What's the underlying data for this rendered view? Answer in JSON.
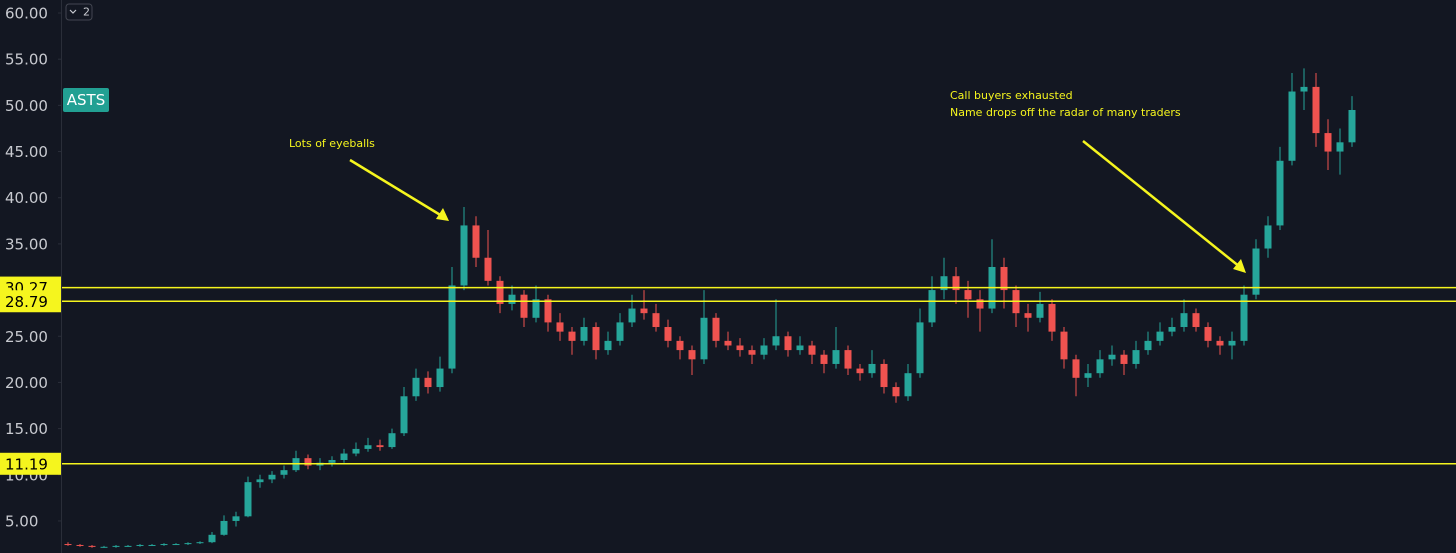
{
  "chart_data": {
    "type": "candlestick",
    "symbol": "ASTS",
    "badge": "2",
    "up_color": "#26a69a",
    "down_color": "#ef5350",
    "ylim": [
      1.53,
      61.41
    ],
    "yticks": [
      {
        "value": 5,
        "label": "5.00"
      },
      {
        "value": 10,
        "label": "10.00"
      },
      {
        "value": 15,
        "label": "15.00"
      },
      {
        "value": 20,
        "label": "20.00"
      },
      {
        "value": 25,
        "label": "25.00"
      },
      {
        "value": 30,
        "label": "30.00"
      },
      {
        "value": 35,
        "label": "35.00"
      },
      {
        "value": 40,
        "label": "40.00"
      },
      {
        "value": 45,
        "label": "45.00"
      },
      {
        "value": 50,
        "label": "50.00"
      },
      {
        "value": 55,
        "label": "55.00"
      },
      {
        "value": 60,
        "label": "60.00"
      }
    ],
    "hlines": [
      {
        "value": 30.27,
        "label": "30.27"
      },
      {
        "value": 28.79,
        "label": "28.79"
      },
      {
        "value": 11.19,
        "label": "11.19"
      }
    ],
    "hline_color": "#f5f51e",
    "annotations": [
      "Lots of eyeballs",
      "Call buyers exhausted",
      "Name drops off the radar of many traders"
    ],
    "open": [
      2.5,
      2.4,
      2.3,
      2.2,
      2.2,
      2.3,
      2.3,
      2.4,
      2.4,
      2.5,
      2.5,
      2.6,
      2.7,
      3.5,
      5.0,
      5.5,
      9.2,
      9.5,
      10.0,
      10.5,
      11.8,
      11.0,
      11.3,
      11.6,
      12.3,
      12.8,
      13.2,
      13.0,
      14.5,
      18.5,
      20.5,
      19.5,
      21.5,
      30.5,
      37.0,
      33.5,
      31.0,
      28.5,
      29.5,
      27.0,
      29.0,
      26.5,
      25.5,
      24.5,
      26.0,
      23.5,
      24.5,
      26.5,
      28.0,
      27.5,
      26.0,
      24.5,
      23.5,
      22.5,
      27.0,
      24.5,
      24.0,
      23.5,
      23.0,
      24.0,
      25.0,
      23.5,
      24.0,
      23.0,
      22.0,
      23.5,
      21.5,
      21.0,
      22.0,
      19.5,
      18.5,
      21.0,
      26.5,
      30.0,
      31.5,
      30.0,
      29.0,
      28.0,
      32.5,
      30.0,
      27.5,
      27.0,
      28.5,
      25.5,
      22.5,
      20.5,
      21.0,
      22.5,
      23.0,
      22.0,
      23.5,
      24.5,
      25.5,
      26.0,
      27.5,
      26.0,
      24.5,
      24.0,
      24.5,
      29.5,
      34.5,
      37.0,
      44.0,
      51.5,
      52.0,
      47.0,
      45.0,
      46.0
    ],
    "high": [
      2.7,
      2.5,
      2.4,
      2.3,
      2.4,
      2.4,
      2.5,
      2.5,
      2.6,
      2.6,
      2.7,
      2.8,
      3.8,
      5.6,
      6.0,
      9.8,
      10.0,
      10.4,
      11.0,
      12.6,
      12.2,
      11.8,
      12.0,
      12.8,
      13.5,
      14.0,
      13.8,
      15.0,
      19.5,
      21.5,
      21.2,
      22.8,
      32.5,
      39.0,
      38.0,
      36.5,
      31.5,
      30.5,
      30.0,
      30.5,
      29.5,
      27.5,
      26.0,
      27.0,
      26.5,
      25.5,
      27.5,
      29.5,
      30.0,
      28.5,
      26.8,
      25.0,
      24.0,
      30.0,
      27.5,
      25.5,
      24.8,
      24.0,
      24.8,
      29.0,
      25.5,
      25.0,
      24.5,
      23.5,
      26.0,
      24.0,
      22.0,
      23.5,
      22.5,
      20.0,
      22.0,
      28.0,
      31.5,
      33.5,
      32.5,
      31.0,
      30.0,
      35.5,
      33.5,
      30.5,
      28.5,
      29.8,
      29.0,
      26.0,
      23.0,
      22.0,
      23.5,
      24.0,
      23.5,
      24.5,
      25.5,
      26.5,
      27.0,
      29.0,
      28.0,
      26.5,
      25.0,
      25.5,
      30.5,
      35.5,
      38.0,
      45.5,
      53.5,
      54.0,
      53.5,
      48.5,
      47.5,
      51.0
    ],
    "low": [
      2.3,
      2.2,
      2.1,
      2.1,
      2.1,
      2.2,
      2.2,
      2.3,
      2.3,
      2.4,
      2.4,
      2.5,
      2.6,
      3.4,
      4.4,
      5.4,
      8.6,
      9.1,
      9.6,
      10.3,
      10.6,
      10.5,
      10.9,
      11.3,
      12.0,
      12.5,
      12.6,
      12.8,
      14.2,
      18.0,
      18.8,
      19.0,
      21.0,
      30.0,
      32.5,
      30.5,
      27.5,
      27.8,
      26.0,
      26.5,
      25.5,
      24.5,
      23.0,
      24.0,
      22.5,
      23.0,
      24.0,
      26.0,
      26.8,
      25.5,
      23.8,
      22.5,
      20.8,
      22.0,
      23.8,
      23.5,
      22.8,
      22.0,
      22.5,
      23.5,
      22.8,
      23.0,
      22.0,
      21.0,
      21.5,
      20.8,
      20.2,
      20.5,
      18.8,
      17.8,
      18.0,
      20.5,
      26.0,
      29.0,
      28.5,
      27.0,
      25.5,
      27.5,
      28.0,
      26.0,
      25.5,
      26.5,
      24.5,
      21.5,
      18.5,
      19.5,
      20.5,
      21.8,
      20.8,
      21.5,
      23.0,
      24.0,
      25.0,
      25.5,
      25.5,
      23.8,
      23.0,
      22.5,
      24.0,
      29.0,
      33.5,
      36.5,
      43.5,
      49.5,
      45.5,
      43.0,
      42.5,
      45.5
    ],
    "close": [
      2.4,
      2.3,
      2.2,
      2.2,
      2.3,
      2.3,
      2.4,
      2.4,
      2.5,
      2.5,
      2.6,
      2.7,
      3.5,
      5.0,
      5.5,
      9.2,
      9.5,
      10.0,
      10.5,
      11.8,
      11.0,
      11.3,
      11.6,
      12.3,
      12.8,
      13.2,
      13.0,
      14.5,
      18.5,
      20.5,
      19.5,
      21.5,
      30.5,
      37.0,
      33.5,
      31.0,
      28.5,
      29.5,
      27.0,
      29.0,
      26.5,
      25.5,
      24.5,
      26.0,
      23.5,
      24.5,
      26.5,
      28.0,
      27.5,
      26.0,
      24.5,
      23.5,
      22.5,
      27.0,
      24.5,
      24.0,
      23.5,
      23.0,
      24.0,
      25.0,
      23.5,
      24.0,
      23.0,
      22.0,
      23.5,
      21.5,
      21.0,
      22.0,
      19.5,
      18.5,
      21.0,
      26.5,
      30.0,
      31.5,
      30.0,
      29.0,
      28.0,
      32.5,
      30.0,
      27.5,
      27.0,
      28.5,
      25.5,
      22.5,
      20.5,
      21.0,
      22.5,
      23.0,
      22.0,
      23.5,
      24.5,
      25.5,
      26.0,
      27.5,
      26.0,
      24.5,
      24.0,
      24.5,
      29.5,
      34.5,
      37.0,
      44.0,
      51.5,
      52.0,
      47.0,
      45.0,
      46.0,
      49.5
    ]
  }
}
